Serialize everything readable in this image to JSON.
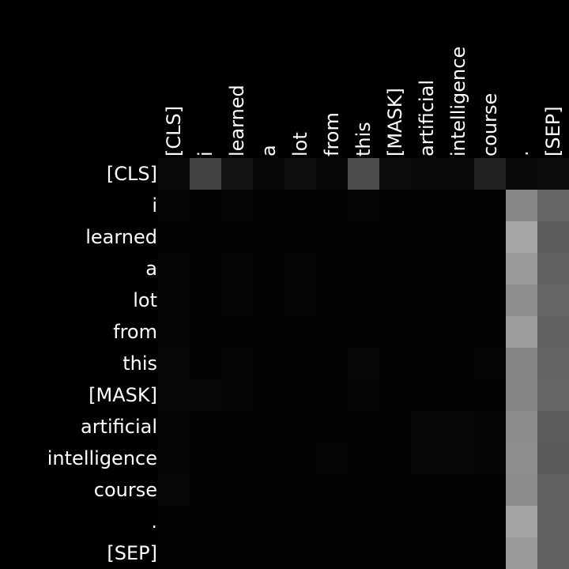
{
  "chart_data": {
    "type": "heatmap",
    "colormap": "grayscale (black = low, white = high)",
    "x_labels": [
      "[CLS]",
      "i",
      "learned",
      "a",
      "lot",
      "from",
      "this",
      "[MASK]",
      "artificial",
      "intelligence",
      "course",
      ".",
      "[SEP]"
    ],
    "y_labels": [
      "[CLS]",
      "i",
      "learned",
      "a",
      "lot",
      "from",
      "this",
      "[MASK]",
      "artificial",
      "intelligence",
      "course",
      ".",
      "[SEP]"
    ],
    "value_range": [
      0,
      1
    ],
    "values": [
      [
        0.04,
        0.26,
        0.07,
        0.03,
        0.06,
        0.03,
        0.3,
        0.05,
        0.04,
        0.04,
        0.13,
        0.04,
        0.05
      ],
      [
        0.02,
        0.01,
        0.02,
        0.01,
        0.01,
        0.01,
        0.02,
        0.01,
        0.01,
        0.01,
        0.01,
        0.53,
        0.4
      ],
      [
        0.01,
        0.01,
        0.01,
        0.01,
        0.01,
        0.01,
        0.01,
        0.01,
        0.01,
        0.01,
        0.01,
        0.65,
        0.36
      ],
      [
        0.02,
        0.01,
        0.02,
        0.01,
        0.02,
        0.01,
        0.01,
        0.01,
        0.01,
        0.01,
        0.01,
        0.6,
        0.38
      ],
      [
        0.02,
        0.01,
        0.02,
        0.01,
        0.02,
        0.01,
        0.01,
        0.01,
        0.01,
        0.01,
        0.01,
        0.56,
        0.4
      ],
      [
        0.02,
        0.01,
        0.01,
        0.01,
        0.01,
        0.01,
        0.01,
        0.01,
        0.01,
        0.01,
        0.01,
        0.61,
        0.38
      ],
      [
        0.03,
        0.01,
        0.02,
        0.01,
        0.01,
        0.01,
        0.03,
        0.01,
        0.01,
        0.01,
        0.02,
        0.52,
        0.39
      ],
      [
        0.03,
        0.03,
        0.02,
        0.01,
        0.01,
        0.01,
        0.02,
        0.01,
        0.01,
        0.01,
        0.01,
        0.52,
        0.4
      ],
      [
        0.02,
        0.01,
        0.01,
        0.01,
        0.01,
        0.01,
        0.01,
        0.01,
        0.03,
        0.03,
        0.02,
        0.55,
        0.36
      ],
      [
        0.02,
        0.01,
        0.01,
        0.01,
        0.01,
        0.02,
        0.01,
        0.01,
        0.03,
        0.03,
        0.02,
        0.56,
        0.35
      ],
      [
        0.03,
        0.01,
        0.01,
        0.01,
        0.01,
        0.01,
        0.01,
        0.01,
        0.01,
        0.01,
        0.01,
        0.55,
        0.38
      ],
      [
        0.01,
        0.01,
        0.01,
        0.01,
        0.01,
        0.01,
        0.01,
        0.01,
        0.01,
        0.01,
        0.01,
        0.64,
        0.38
      ],
      [
        0.01,
        0.01,
        0.01,
        0.01,
        0.01,
        0.01,
        0.01,
        0.01,
        0.01,
        0.01,
        0.01,
        0.6,
        0.38
      ]
    ],
    "colors": {
      "background": "#000000",
      "text": "#ffffff"
    }
  }
}
